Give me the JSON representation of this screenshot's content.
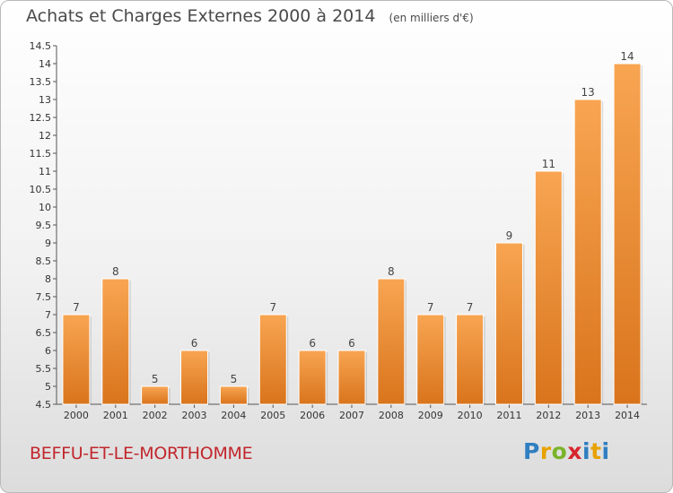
{
  "header": {
    "title": "Achats et Charges Externes 2000 à 2014",
    "subtitle": "(en milliers d'€)"
  },
  "footer": {
    "commune": "BEFFU-ET-LE-MORTHOMME",
    "brand_letters": [
      "P",
      "r",
      "o",
      "x",
      "i",
      "t",
      "i"
    ]
  },
  "colors": {
    "bar_light": "#f8a552",
    "bar_dark": "#d9741c",
    "title": "#4a4a4a",
    "commune": "#c1272d"
  },
  "chart_data": {
    "type": "bar",
    "title": "Achats et Charges Externes 2000 à 2014",
    "subtitle": "(en milliers d'€)",
    "xlabel": "",
    "ylabel": "",
    "categories": [
      "2000",
      "2001",
      "2002",
      "2003",
      "2004",
      "2005",
      "2006",
      "2007",
      "2008",
      "2009",
      "2010",
      "2011",
      "2012",
      "2013",
      "2014"
    ],
    "values": [
      7,
      8,
      5,
      6,
      5,
      7,
      6,
      6,
      8,
      7,
      7,
      9,
      11,
      13,
      14
    ],
    "data_labels": [
      "7",
      "8",
      "5",
      "6",
      "5",
      "7",
      "6",
      "6",
      "8",
      "7",
      "7",
      "9",
      "11",
      "13",
      "14"
    ],
    "ylim": [
      4.5,
      14.5
    ],
    "yticks": [
      "4.5",
      "5",
      "5.5",
      "6",
      "6.5",
      "7",
      "7.5",
      "8",
      "8.5",
      "9",
      "9.5",
      "10",
      "10.5",
      "11",
      "11.5",
      "12",
      "12.5",
      "13",
      "13.5",
      "14",
      "14.5"
    ],
    "grid": false,
    "legend": "none"
  }
}
